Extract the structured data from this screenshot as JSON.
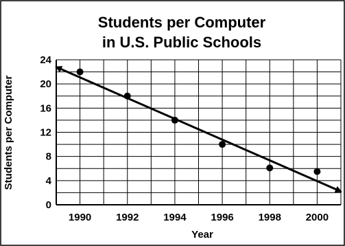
{
  "chart_data": {
    "type": "scatter",
    "title_lines": [
      "Students per Computer",
      "in U.S. Public Schools"
    ],
    "xlabel": "Year",
    "ylabel": "Students per Computer",
    "x_ticks": [
      "1990",
      "1992",
      "1994",
      "1996",
      "1998",
      "2000"
    ],
    "y_ticks": [
      "0",
      "4",
      "8",
      "12",
      "16",
      "20",
      "24"
    ],
    "xlim": [
      1989,
      2001
    ],
    "ylim": [
      0,
      24
    ],
    "grid": true,
    "series": [
      {
        "x": [
          1990,
          1992,
          1994,
          1996,
          1998,
          2000
        ],
        "y": [
          22,
          18,
          14,
          10,
          6.1,
          5.5
        ]
      }
    ],
    "trend_line": {
      "x": [
        1989,
        2001
      ],
      "y": [
        22.8,
        2.2
      ],
      "arrows": "both"
    }
  }
}
